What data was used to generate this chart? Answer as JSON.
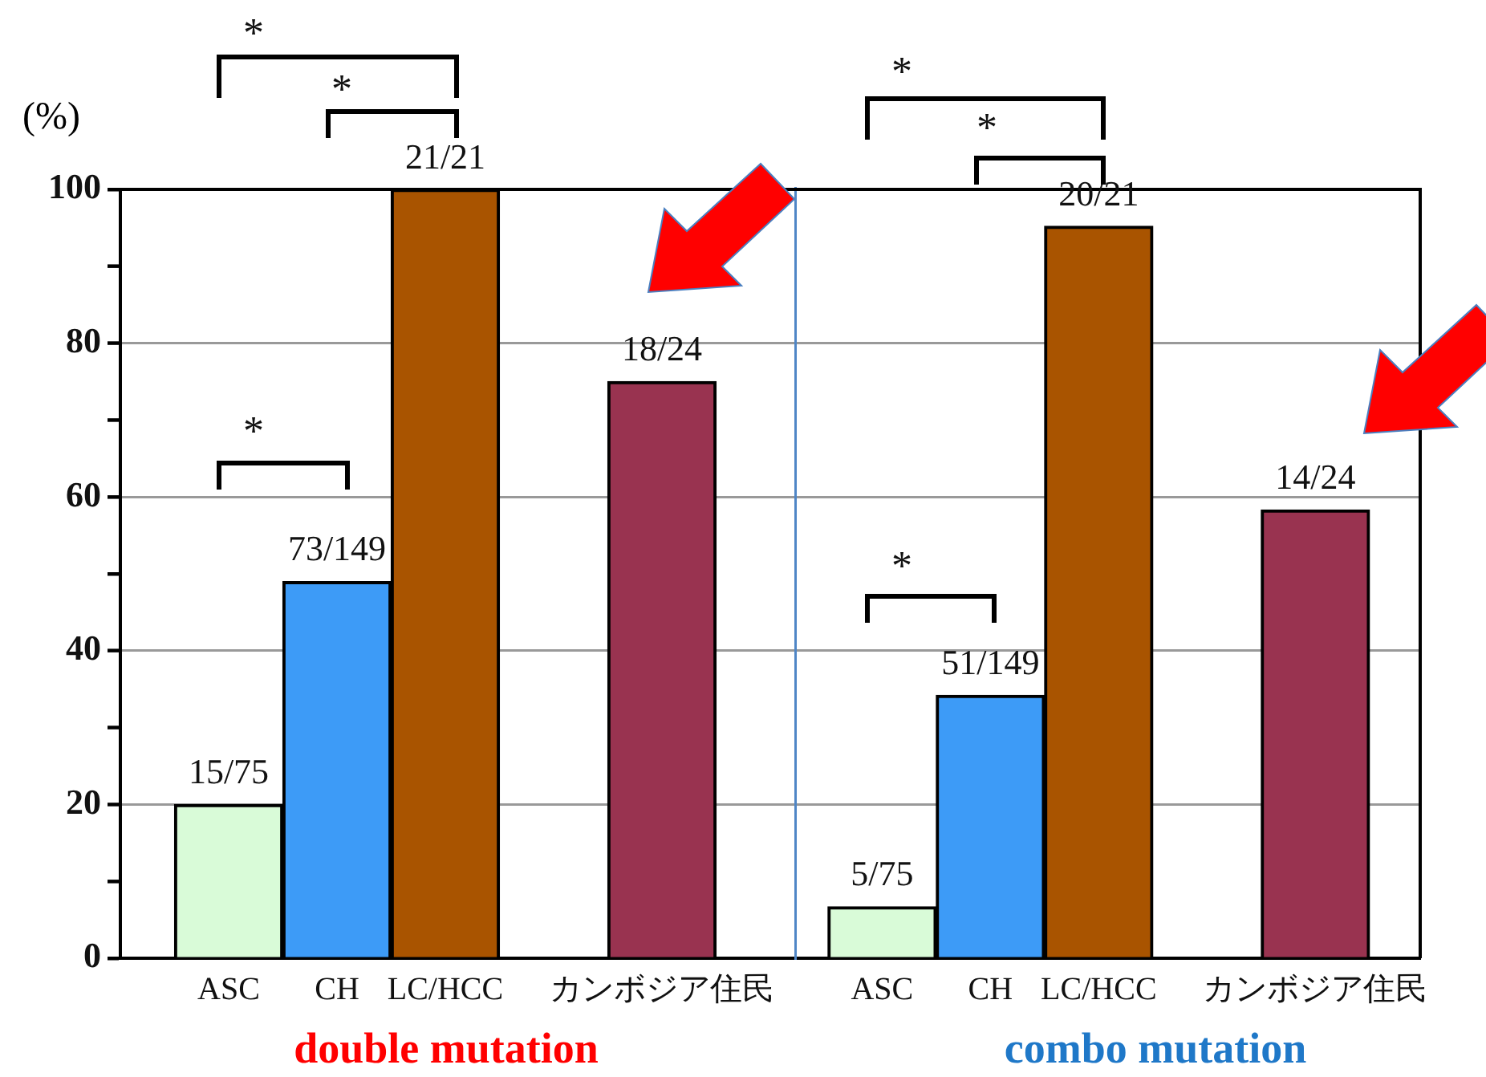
{
  "chart_data": [
    {
      "type": "bar",
      "ylabel": "(%)",
      "categories": [
        "ASC",
        "CH",
        "LC/HCC",
        null,
        "カンボジア住民"
      ],
      "values": [
        20,
        49,
        100,
        null,
        75
      ],
      "colors": [
        "#d9fbd8",
        "#3d9bf7",
        "#a95400",
        null,
        "#993350"
      ],
      "value_labels": [
        "15/75",
        "73/149",
        "21/21",
        null,
        "18/24"
      ],
      "ylim": [
        0,
        100
      ],
      "yticks": [
        0,
        {
          "value": 10,
          "label": null
        },
        20,
        {
          "value": 30,
          "label": null
        },
        40,
        {
          "value": 50,
          "label": null
        },
        60,
        {
          "value": 70,
          "label": null
        },
        80,
        {
          "value": 90,
          "label": null
        },
        100
      ],
      "grid": "y",
      "annotations": [
        "*",
        "*",
        "*",
        "double mutation"
      ]
    },
    {
      "type": "bar",
      "categories": [
        "ASC",
        "CH",
        "LC/HCC",
        null,
        "カンボジア住民"
      ],
      "values": [
        6.7,
        34.2,
        95.2,
        null,
        58.3
      ],
      "colors": [
        "#d9fbd8",
        "#3d9bf7",
        "#a95400",
        null,
        "#993350"
      ],
      "value_labels": [
        "5/75",
        "51/149",
        "20/21",
        null,
        "14/24"
      ],
      "ylim": [
        0,
        100
      ],
      "yticks": [
        0,
        20,
        40,
        60,
        80,
        100
      ],
      "grid": "y",
      "tick_labels": "x",
      "annotations": [
        "*",
        "*",
        "*",
        "combo mutation"
      ]
    }
  ]
}
